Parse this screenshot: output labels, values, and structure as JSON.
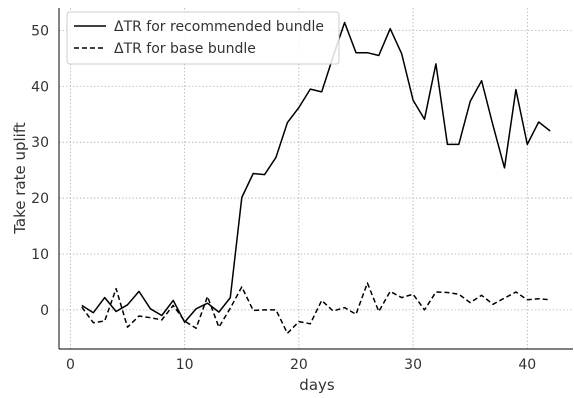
{
  "chart_data": {
    "type": "line",
    "xlabel": "days",
    "ylabel": "Take rate uplift",
    "xlim": [
      -1,
      44
    ],
    "ylim": [
      -7,
      54
    ],
    "xticks": [
      0,
      10,
      20,
      30,
      40
    ],
    "yticks": [
      0,
      10,
      20,
      30,
      40,
      50
    ],
    "grid": true,
    "legend_position": "top-left",
    "series": [
      {
        "name": "ΔTR for recommended bundle",
        "style": "solid",
        "color": "#000000",
        "x": [
          1,
          2,
          3,
          4,
          5,
          6,
          7,
          8,
          9,
          10,
          11,
          12,
          13,
          14,
          15,
          16,
          17,
          18,
          19,
          20,
          21,
          22,
          23,
          24,
          25,
          26,
          27,
          28,
          29,
          30,
          31,
          32,
          33,
          34,
          35,
          36,
          37,
          38,
          39,
          40,
          41,
          42
        ],
        "values": [
          0.8,
          -0.5,
          2.2,
          -0.3,
          0.9,
          3.3,
          0.2,
          -1.0,
          1.7,
          -2.2,
          0.2,
          1.2,
          -0.4,
          2.2,
          20.1,
          24.4,
          24.2,
          27.3,
          33.5,
          36.2,
          39.5,
          39.0,
          45.3,
          51.4,
          46.0,
          46.0,
          45.5,
          50.3,
          45.8,
          37.5,
          34.1,
          44.0,
          29.6,
          29.6,
          37.3,
          41.0,
          33.0,
          25.4,
          39.4,
          29.6,
          33.6,
          32.0
        ]
      },
      {
        "name": "ΔTR for base bundle",
        "style": "dashed",
        "color": "#000000",
        "x": [
          1,
          2,
          3,
          4,
          5,
          6,
          7,
          8,
          9,
          10,
          11,
          12,
          13,
          14,
          15,
          16,
          17,
          18,
          19,
          20,
          21,
          22,
          23,
          24,
          25,
          26,
          27,
          28,
          29,
          30,
          31,
          32,
          33,
          34,
          35,
          36,
          37,
          38,
          39,
          40,
          41,
          42
        ],
        "values": [
          0.5,
          -2.3,
          -2.0,
          3.8,
          -3.1,
          -1.1,
          -1.4,
          -1.8,
          0.8,
          -2.0,
          -3.3,
          2.4,
          -3.1,
          0.3,
          4.1,
          -0.1,
          0.0,
          0.0,
          -4.2,
          -2.1,
          -2.5,
          1.7,
          -0.2,
          0.4,
          -0.8,
          4.8,
          -0.3,
          3.3,
          2.2,
          2.8,
          0.0,
          3.2,
          3.1,
          2.8,
          1.3,
          2.6,
          1.0,
          2.1,
          3.2,
          1.8,
          2.0,
          1.8
        ]
      }
    ]
  }
}
